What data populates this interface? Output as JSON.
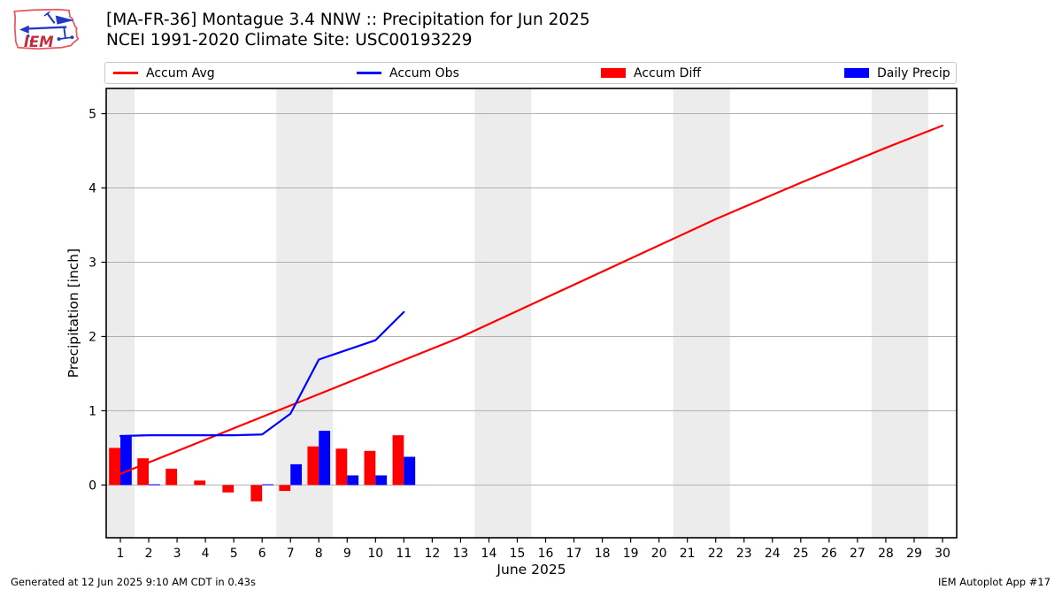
{
  "header": {
    "logo_text": "IEM",
    "title_line1": "[MA-FR-36] Montague 3.4 NNW :: Precipitation for Jun 2025",
    "title_line2": "NCEI 1991-2020 Climate Site: USC00193229"
  },
  "legend": [
    {
      "label": "Accum Avg",
      "type": "line",
      "color": "#ff0000"
    },
    {
      "label": "Accum Obs",
      "type": "line",
      "color": "#0000ff"
    },
    {
      "label": "Accum Diff",
      "type": "rect",
      "color": "#ff0000"
    },
    {
      "label": "Daily Precip",
      "type": "rect",
      "color": "#0000ff"
    }
  ],
  "footer": {
    "left": "Generated at 12 Jun 2025 9:10 AM CDT in 0.43s",
    "right": "IEM Autoplot App #17"
  },
  "chart_data": {
    "type": "bar+line",
    "xlabel": "June 2025",
    "ylabel": "Precipitation [inch]",
    "xlim": [
      0.5,
      30.5
    ],
    "ylim": [
      -0.71,
      5.34
    ],
    "xticks": [
      1,
      2,
      3,
      4,
      5,
      6,
      7,
      8,
      9,
      10,
      11,
      12,
      13,
      14,
      15,
      16,
      17,
      18,
      19,
      20,
      21,
      22,
      23,
      24,
      25,
      26,
      27,
      28,
      29,
      30
    ],
    "yticks": [
      0,
      1,
      2,
      3,
      4,
      5
    ],
    "weekend_bands": [
      [
        0.5,
        1.5
      ],
      [
        6.5,
        8.5
      ],
      [
        13.5,
        15.5
      ],
      [
        20.5,
        22.5
      ],
      [
        27.5,
        29.5
      ]
    ],
    "colors": {
      "band": "#ececec",
      "grid": "#b0b0b0",
      "spine": "#000000",
      "avg_line": "#ff0000",
      "obs_line": "#0000ff",
      "diff_bar": "#ff0000",
      "daily_bar": "#0000ff"
    },
    "bar_width_days": 0.4,
    "series": [
      {
        "name": "Accum Avg",
        "type": "line",
        "color": "#ff0000",
        "points": [
          [
            1,
            0.15
          ],
          [
            4,
            0.61
          ],
          [
            7,
            1.07
          ],
          [
            10,
            1.53
          ],
          [
            13,
            1.99
          ],
          [
            16,
            2.52
          ],
          [
            19,
            3.05
          ],
          [
            22,
            3.58
          ],
          [
            25,
            4.07
          ],
          [
            28,
            4.54
          ],
          [
            30,
            4.84
          ]
        ]
      },
      {
        "name": "Accum Obs",
        "type": "line",
        "color": "#0000ff",
        "points": [
          [
            1,
            0.66
          ],
          [
            2,
            0.67
          ],
          [
            3,
            0.67
          ],
          [
            4,
            0.67
          ],
          [
            5,
            0.67
          ],
          [
            6,
            0.68
          ],
          [
            7,
            0.96
          ],
          [
            8,
            1.69
          ],
          [
            9,
            1.82
          ],
          [
            10,
            1.95
          ],
          [
            11,
            2.33
          ]
        ]
      },
      {
        "name": "Accum Diff",
        "type": "bar",
        "side": "left",
        "color": "#ff0000",
        "days": [
          1,
          2,
          3,
          4,
          5,
          6,
          7,
          8,
          9,
          10,
          11
        ],
        "values": [
          0.5,
          0.36,
          0.22,
          0.06,
          -0.1,
          -0.22,
          -0.08,
          0.52,
          0.49,
          0.46,
          0.67
        ]
      },
      {
        "name": "Daily Precip",
        "type": "bar",
        "side": "right",
        "color": "#0000ff",
        "days": [
          1,
          2,
          3,
          4,
          5,
          6,
          7,
          8,
          9,
          10,
          11
        ],
        "values": [
          0.66,
          0.01,
          0,
          0,
          0,
          0.01,
          0.28,
          0.73,
          0.13,
          0.13,
          0.38
        ]
      }
    ]
  }
}
